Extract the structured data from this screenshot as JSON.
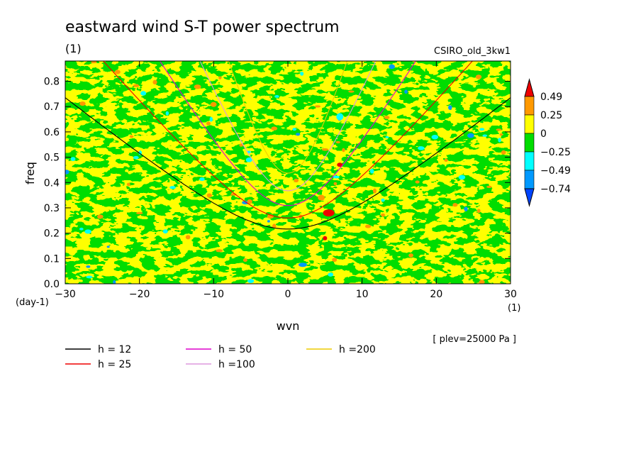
{
  "chart_data": {
    "type": "heatmap",
    "title": "eastward wind S-T power spectrum",
    "subtitle_left": "(1)",
    "subtitle_right": "CSIRO_old_3kw1",
    "xlabel": "wvn",
    "ylabel": "freq",
    "x_unit": "(1)",
    "y_unit": "(day-1)",
    "xlim": [
      -30,
      30
    ],
    "ylim": [
      0,
      0.88
    ],
    "x_ticks": [
      -30,
      -20,
      -10,
      0,
      10,
      20,
      30
    ],
    "y_ticks": [
      0.0,
      0.1,
      0.2,
      0.3,
      0.4,
      0.5,
      0.6,
      0.7,
      0.8
    ],
    "note": "[ plev=25000 Pa ]",
    "colorbar": {
      "levels": [
        "0.49",
        "0.25",
        "0",
        "−0.25",
        "−0.49",
        "−0.74"
      ],
      "colors": [
        "#ee0000",
        "#ff9900",
        "#ffff00",
        "#00dd00",
        "#00ffff",
        "#0099ff",
        "#0044ff"
      ]
    },
    "series": [
      {
        "name": "h = 12",
        "h": 12,
        "color": "#000000"
      },
      {
        "name": "h = 25",
        "h": 25,
        "color": "#ee0000"
      },
      {
        "name": "h = 50",
        "h": 50,
        "color": "#dd00cc"
      },
      {
        "name": "h =100",
        "h": 100,
        "color": "#dd99dd"
      },
      {
        "name": "h =200",
        "h": 200,
        "color": "#eecc00"
      }
    ]
  }
}
